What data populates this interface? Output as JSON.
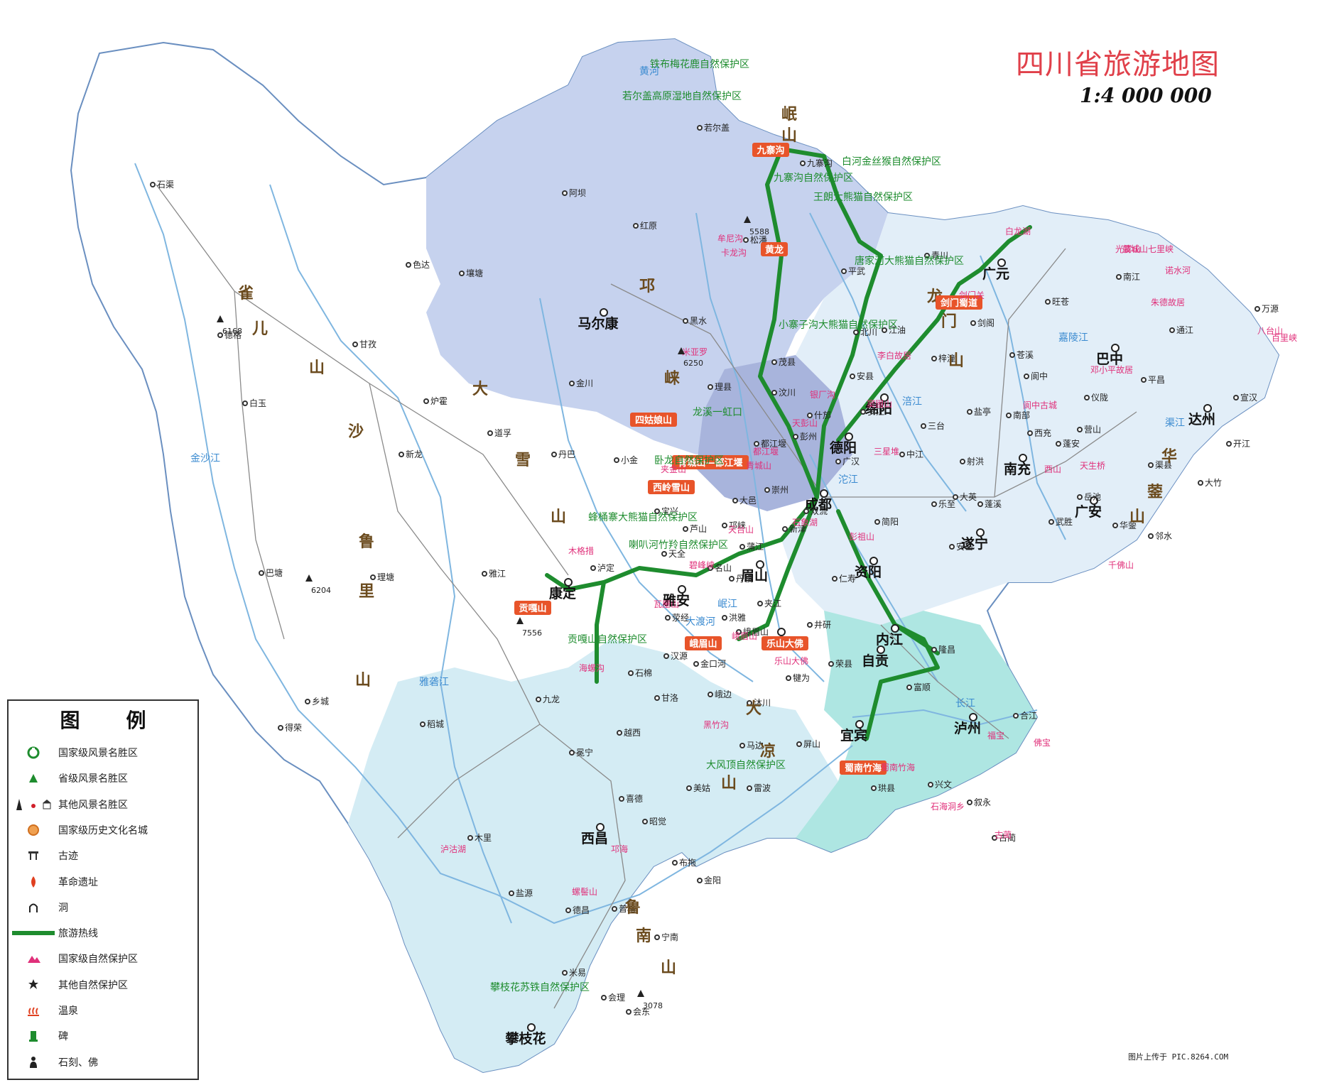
{
  "title": "四川省旅游地图",
  "scale": "1:4 000 000",
  "credit": "图片上传于 PIC.8264.COM",
  "legend": {
    "heading_chars": [
      "图",
      "例"
    ],
    "items": [
      {
        "label": "国家级风景名胜区",
        "icon": "national-scenic-area-icon"
      },
      {
        "label": "省级风景名胜区",
        "icon": "provincial-scenic-area-icon"
      },
      {
        "label": "其他风景名胜区",
        "icon": "other-scenic-area-icon"
      },
      {
        "label": "国家级历史文化名城",
        "icon": "historic-city-icon"
      },
      {
        "label": "古迹",
        "icon": "historic-site-icon"
      },
      {
        "label": "革命遗址",
        "icon": "revolutionary-site-icon"
      },
      {
        "label": "洞",
        "icon": "cave-icon"
      },
      {
        "label": "旅游热线",
        "icon": "tourist-route-line-icon"
      },
      {
        "label": "国家级自然保护区",
        "icon": "national-nature-reserve-icon"
      },
      {
        "label": "其他自然保护区",
        "icon": "other-nature-reserve-icon"
      },
      {
        "label": "温泉",
        "icon": "hot-spring-icon"
      },
      {
        "label": "碑",
        "icon": "stele-icon"
      },
      {
        "label": "石刻、佛",
        "icon": "stone-carving-buddha-icon"
      }
    ]
  },
  "colors": {
    "route": "#1e8c2e",
    "scenic_label_bg": "#e8542a",
    "scenic_text": "#e0307a",
    "reserve_text": "#1e8c2e",
    "region_north": "#c6d2ee",
    "region_east": "#e2eef8",
    "region_south": "#d4ecf4",
    "region_southeast": "#aee6e2",
    "region_west": "#ffffff",
    "river": "#7fb6e0",
    "city_text": "#111111"
  },
  "cities": [
    {
      "name": "成都",
      "major": true
    },
    {
      "name": "绵阳",
      "major": true
    },
    {
      "name": "德阳",
      "major": true
    },
    {
      "name": "广元",
      "major": true
    },
    {
      "name": "巴中",
      "major": true
    },
    {
      "name": "达州",
      "major": true
    },
    {
      "name": "南充",
      "major": true
    },
    {
      "name": "广安",
      "major": true
    },
    {
      "name": "遂宁",
      "major": true
    },
    {
      "name": "资阳",
      "major": true
    },
    {
      "name": "内江",
      "major": true
    },
    {
      "name": "自贡",
      "major": true
    },
    {
      "name": "泸州",
      "major": true
    },
    {
      "name": "宜宾",
      "major": true
    },
    {
      "name": "乐山",
      "major": true
    },
    {
      "name": "眉山",
      "major": true
    },
    {
      "name": "雅安",
      "major": true
    },
    {
      "name": "康定",
      "major": true
    },
    {
      "name": "马尔康",
      "major": true
    },
    {
      "name": "西昌",
      "major": true
    },
    {
      "name": "攀枝花",
      "major": true
    },
    {
      "name": "石渠",
      "major": false
    },
    {
      "name": "色达",
      "major": false
    },
    {
      "name": "甘孜",
      "major": false
    },
    {
      "name": "炉霍",
      "major": false
    },
    {
      "name": "道孚",
      "major": false
    },
    {
      "name": "丹巴",
      "major": false
    },
    {
      "name": "金川",
      "major": false
    },
    {
      "name": "小金",
      "major": false
    },
    {
      "name": "阿坝",
      "major": false
    },
    {
      "name": "红原",
      "major": false
    },
    {
      "name": "若尔盖",
      "major": false
    },
    {
      "name": "松潘",
      "major": false
    },
    {
      "name": "黑水",
      "major": false
    },
    {
      "name": "理县",
      "major": false
    },
    {
      "name": "茂县",
      "major": false
    },
    {
      "name": "汶川",
      "major": false
    },
    {
      "name": "平武",
      "major": false
    },
    {
      "name": "青川",
      "major": false
    },
    {
      "name": "剑阁",
      "major": false
    },
    {
      "name": "旺苍",
      "major": false
    },
    {
      "name": "南江",
      "major": false
    },
    {
      "name": "通江",
      "major": false
    },
    {
      "name": "万源",
      "major": false
    },
    {
      "name": "宣汉",
      "major": false
    },
    {
      "name": "开江",
      "major": false
    },
    {
      "name": "大竹",
      "major": false
    },
    {
      "name": "邻水",
      "major": false
    },
    {
      "name": "白玉",
      "major": false
    },
    {
      "name": "新龙",
      "major": false
    },
    {
      "name": "巴塘",
      "major": false
    },
    {
      "name": "理塘",
      "major": false
    },
    {
      "name": "雅江",
      "major": false
    },
    {
      "name": "九龙",
      "major": false
    },
    {
      "name": "稻城",
      "major": false
    },
    {
      "name": "乡城",
      "major": false
    },
    {
      "name": "得荣",
      "major": false
    },
    {
      "name": "木里",
      "major": false
    },
    {
      "name": "盐源",
      "major": false
    },
    {
      "name": "德昌",
      "major": false
    },
    {
      "name": "米易",
      "major": false
    },
    {
      "name": "会理",
      "major": false
    },
    {
      "name": "会东",
      "major": false
    },
    {
      "name": "宁南",
      "major": false
    },
    {
      "name": "普格",
      "major": false
    },
    {
      "name": "昭觉",
      "major": false
    },
    {
      "name": "美姑",
      "major": false
    },
    {
      "name": "雷波",
      "major": false
    },
    {
      "name": "越西",
      "major": false
    },
    {
      "name": "甘洛",
      "major": false
    },
    {
      "name": "汉源",
      "major": false
    },
    {
      "name": "石棉",
      "major": false
    },
    {
      "name": "冕宁",
      "major": false
    },
    {
      "name": "喜德",
      "major": false
    },
    {
      "name": "金阳",
      "major": false
    },
    {
      "name": "布拖",
      "major": false
    },
    {
      "name": "峨边",
      "major": false
    },
    {
      "name": "马边",
      "major": false
    },
    {
      "name": "屏山",
      "major": false
    },
    {
      "name": "珙县",
      "major": false
    },
    {
      "name": "兴文",
      "major": false
    },
    {
      "name": "叙永",
      "major": false
    },
    {
      "name": "古蔺",
      "major": false
    },
    {
      "name": "合江",
      "major": false
    },
    {
      "name": "隆昌",
      "major": false
    },
    {
      "name": "富顺",
      "major": false
    },
    {
      "name": "荣县",
      "major": false
    },
    {
      "name": "井研",
      "major": false
    },
    {
      "name": "仁寿",
      "major": false
    },
    {
      "name": "简阳",
      "major": false
    },
    {
      "name": "乐至",
      "major": false
    },
    {
      "name": "安岳",
      "major": false
    },
    {
      "name": "蓬溪",
      "major": false
    },
    {
      "name": "射洪",
      "major": false
    },
    {
      "name": "三台",
      "major": false
    },
    {
      "name": "盐亭",
      "major": false
    },
    {
      "name": "梓潼",
      "major": false
    },
    {
      "name": "江油",
      "major": false
    },
    {
      "name": "北川",
      "major": false
    },
    {
      "name": "安县",
      "major": false
    },
    {
      "name": "什邡",
      "major": false
    },
    {
      "name": "彭州",
      "major": false
    },
    {
      "name": "都江堰",
      "major": false
    },
    {
      "name": "崇州",
      "major": false
    },
    {
      "name": "大邑",
      "major": false
    },
    {
      "name": "邛崃",
      "major": false
    },
    {
      "name": "蒲江",
      "major": false
    },
    {
      "name": "名山",
      "major": false
    },
    {
      "name": "芦山",
      "major": false
    },
    {
      "name": "宝兴",
      "major": false
    },
    {
      "name": "天全",
      "major": false
    },
    {
      "name": "荥经",
      "major": false
    },
    {
      "name": "洪雅",
      "major": false
    },
    {
      "name": "丹棱",
      "major": false
    },
    {
      "name": "夹江",
      "major": false
    },
    {
      "name": "峨眉山",
      "major": false
    },
    {
      "name": "沐川",
      "major": false
    },
    {
      "name": "犍为",
      "major": false
    },
    {
      "name": "金口河",
      "major": false
    },
    {
      "name": "新津",
      "major": false
    },
    {
      "name": "双流",
      "major": false
    },
    {
      "name": "阆中",
      "major": false
    },
    {
      "name": "南部",
      "major": false
    },
    {
      "name": "西充",
      "major": false
    },
    {
      "name": "蓬安",
      "major": false
    },
    {
      "name": "营山",
      "major": false
    },
    {
      "name": "仪陇",
      "major": false
    },
    {
      "name": "渠县",
      "major": false
    },
    {
      "name": "岳池",
      "major": false
    },
    {
      "name": "武胜",
      "major": false
    },
    {
      "name": "华蓥",
      "major": false
    },
    {
      "name": "苍溪",
      "major": false
    },
    {
      "name": "平昌",
      "major": false
    },
    {
      "name": "大英",
      "major": false
    },
    {
      "name": "中江",
      "major": false
    },
    {
      "name": "罗江",
      "major": false
    },
    {
      "name": "广汉",
      "major": false
    },
    {
      "name": "壤塘",
      "major": false
    },
    {
      "name": "德格",
      "major": false
    },
    {
      "name": "泸定",
      "major": false
    },
    {
      "name": "九寨沟",
      "major": false
    }
  ],
  "map_texts": {
    "mountains": [
      "岷",
      "山",
      "邛",
      "崃",
      "大",
      "雪",
      "山",
      "沙",
      "鲁",
      "里",
      "山",
      "雀",
      "儿",
      "山",
      "大",
      "凉",
      "山",
      "龙",
      "门",
      "山",
      "华",
      "蓥",
      "山",
      "鲁",
      "南",
      "山"
    ],
    "rivers": [
      "金沙江",
      "雅砻江",
      "大渡河",
      "岷江",
      "嘉陵江",
      "涪江",
      "沱江",
      "渠江",
      "长江",
      "黄河"
    ],
    "scenic_badges": [
      "九寨沟",
      "黄龙",
      "四姑娘山",
      "青城山—都江堰",
      "西岭雪山",
      "贡嘎山",
      "峨眉山",
      "乐山大佛",
      "蜀南竹海",
      "剑门蜀道"
    ],
    "reserves": [
      "铁布梅花鹿自然保护区",
      "若尔盖高原湿地自然保护区",
      "九寨沟自然保护区",
      "白河金丝猴自然保护区",
      "王朗大熊猫自然保护区",
      "唐家河大熊猫自然保护区",
      "小寨子沟大熊猫自然保护区",
      "卧龙自然保护区",
      "龙溪一虹口",
      "蜂桶寨大熊猫自然保护区",
      "喇叭河竹羚自然保护区",
      "贡嘎山自然保护区",
      "大风顶自然保护区",
      "攀枝花苏铁自然保护区"
    ],
    "spots": [
      "光雾山",
      "鼓城山七里峡",
      "诺水河",
      "八台山",
      "百里峡",
      "窦圌山",
      "李白故居",
      "邓小平故居",
      "朱德故居",
      "阆中古城",
      "蜀南竹海",
      "石海洞乡",
      "泸沽湖",
      "邛海",
      "螺髻山",
      "海螺沟",
      "木格措",
      "米亚罗",
      "卡龙沟",
      "牟尼沟",
      "三星堆",
      "天台山",
      "碧峰峡",
      "瓦屋山",
      "黑竹沟",
      "佛宝",
      "福宝",
      "古蔺",
      "夹金山",
      "彭祖山",
      "石象湖",
      "天彭山",
      "银厂沟",
      "西山",
      "天生桥",
      "千佛山",
      "白龙湖",
      "剑门关",
      "乐山大佛",
      "峨眉山",
      "都江堰",
      "青城山"
    ],
    "peaks": [
      "5588",
      "6250",
      "7556",
      "6168",
      "6204",
      "3078"
    ]
  }
}
